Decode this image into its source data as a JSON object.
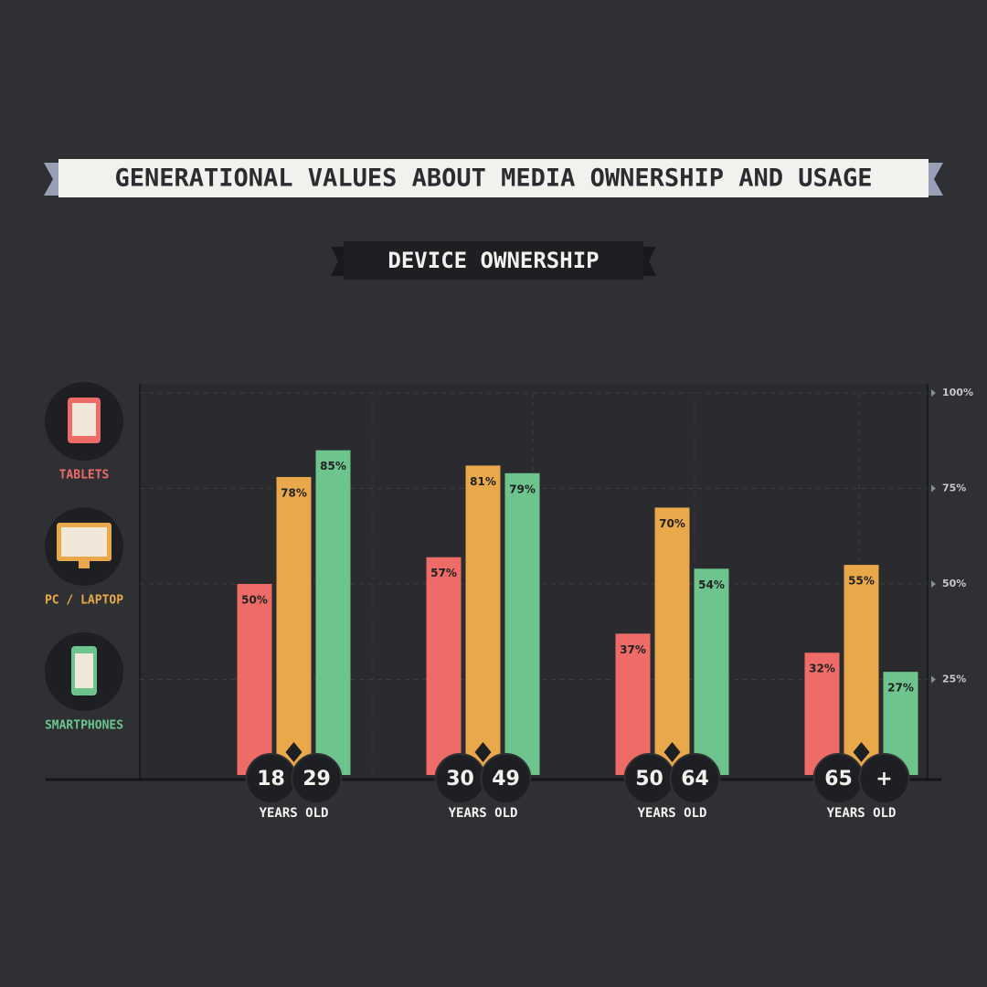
{
  "chart_data": {
    "type": "bar",
    "title": "GENERATIONAL VALUES ABOUT MEDIA OWNERSHIP AND USAGE",
    "subtitle": "DEVICE OWNERSHIP",
    "categories": [
      {
        "start": "18",
        "end": "29",
        "label": "YEARS OLD"
      },
      {
        "start": "30",
        "end": "49",
        "label": "YEARS OLD"
      },
      {
        "start": "50",
        "end": "64",
        "label": "YEARS OLD"
      },
      {
        "start": "65",
        "end": "+",
        "label": "YEARS OLD"
      }
    ],
    "series": [
      {
        "name": "TABLETS",
        "color": "#ee6b68",
        "values": [
          50,
          57,
          37,
          32
        ],
        "value_labels": [
          "50%",
          "57%",
          "37%",
          "32%"
        ]
      },
      {
        "name": "PC / LAPTOP",
        "color": "#e9a94a",
        "values": [
          78,
          81,
          70,
          55
        ],
        "value_labels": [
          "78%",
          "81%",
          "70%",
          "55%"
        ]
      },
      {
        "name": "SMARTPHONES",
        "color": "#6dc48c",
        "values": [
          85,
          79,
          54,
          27
        ],
        "value_labels": [
          "85%",
          "79%",
          "54%",
          "27%"
        ]
      }
    ],
    "ylim": [
      0,
      100
    ],
    "yticks": [
      {
        "value": 25,
        "label": "25%"
      },
      {
        "value": 50,
        "label": "50%"
      },
      {
        "value": 75,
        "label": "75%"
      },
      {
        "value": 100,
        "label": "100%"
      }
    ],
    "grid": true
  }
}
